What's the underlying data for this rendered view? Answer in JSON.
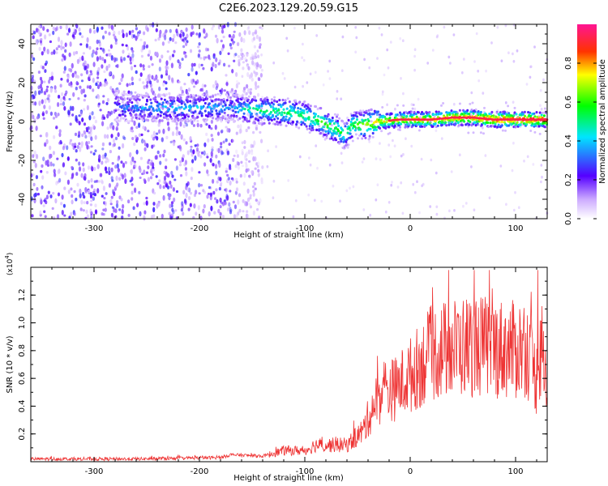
{
  "title": "C2E6.2023.129.20.59.G15",
  "chart_data": [
    {
      "type": "heatmap",
      "xlabel": "Height of straight line (km)",
      "ylabel": "Frequency (Hz)",
      "xlim": [
        -360,
        130
      ],
      "ylim": [
        -50,
        50
      ],
      "xticks": [
        -300,
        -200,
        -100,
        0,
        100
      ],
      "yticks": [
        -40,
        -20,
        0,
        20,
        40
      ],
      "colorbar": {
        "label": "Normalized spectral amplitude",
        "range": [
          0,
          1
        ],
        "ticks": [
          "0.0",
          "0.2",
          "0.4",
          "0.6",
          "0.8"
        ],
        "colors": [
          "#ffffff",
          "#5500ff",
          "#00ffff",
          "#00ff00",
          "#ffff00",
          "#ff0000",
          "#ff1493"
        ]
      },
      "ridge": {
        "x": [
          -280,
          -240,
          -200,
          -170,
          -150,
          -120,
          -100,
          -85,
          -70,
          -62,
          -55,
          -45,
          -30,
          -10,
          0,
          20,
          40,
          60,
          80,
          100,
          120,
          130
        ],
        "frequency": [
          7,
          7,
          7,
          7,
          6,
          5,
          3,
          0,
          -4,
          -7,
          -2,
          -2,
          0,
          1,
          1,
          1,
          2,
          2,
          1,
          1,
          1,
          1
        ],
        "amplitude": [
          0.3,
          0.4,
          0.4,
          0.35,
          0.5,
          0.55,
          0.55,
          0.6,
          0.6,
          0.5,
          0.6,
          0.7,
          0.75,
          0.8,
          0.8,
          0.85,
          0.9,
          0.9,
          0.95,
          0.95,
          0.95,
          0.95
        ]
      },
      "noise_region_x": [
        -360,
        -160
      ]
    },
    {
      "type": "line",
      "xlabel": "Height of straight line (km)",
      "ylabel": "SNR (10 * v/v)",
      "y_multiplier": "(x10",
      "y_multiplier_exp": "4",
      "y_multiplier_close": ")",
      "xlim": [
        -360,
        130
      ],
      "ylim": [
        0,
        1.4
      ],
      "xticks": [
        -300,
        -200,
        -100,
        0,
        100
      ],
      "yticks": [
        "0.2",
        "0.4",
        "0.6",
        "0.8",
        "1.0",
        "1.2"
      ],
      "color": "#ee3333",
      "envelope": {
        "x": [
          -360,
          -260,
          -180,
          -170,
          -140,
          -120,
          -100,
          -90,
          -60,
          -45,
          -35,
          -25,
          -15,
          0,
          20,
          40,
          60,
          80,
          100,
          110,
          115,
          120,
          125,
          130
        ],
        "y": [
          0.02,
          0.02,
          0.03,
          0.05,
          0.04,
          0.08,
          0.08,
          0.12,
          0.12,
          0.22,
          0.4,
          0.52,
          0.52,
          0.62,
          0.78,
          0.82,
          0.84,
          0.82,
          0.8,
          0.84,
          0.7,
          0.6,
          0.8,
          0.6
        ]
      }
    }
  ]
}
